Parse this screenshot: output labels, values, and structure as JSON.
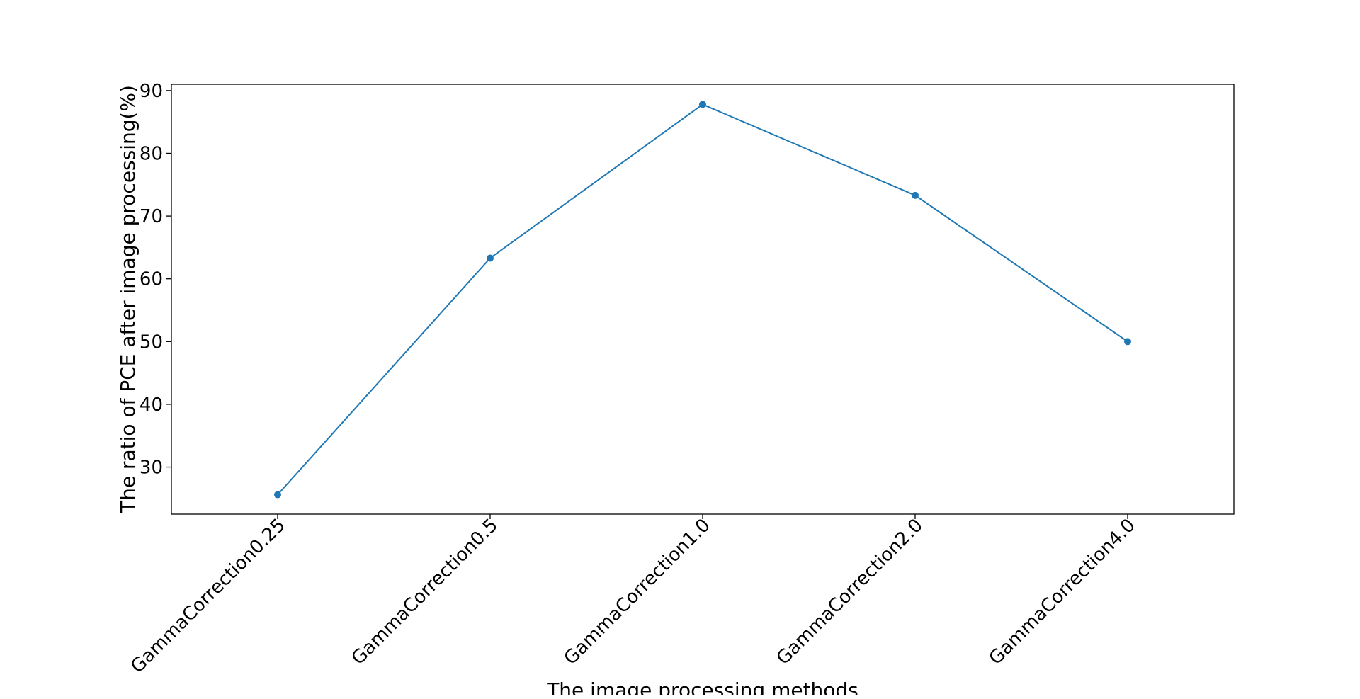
{
  "chart_data": {
    "type": "line",
    "title": "",
    "xlabel": "The image processing methods",
    "ylabel": "The ratio of PCE after image processing(%)",
    "categories": [
      "GammaCorrection0.25",
      "GammaCorrection0.5",
      "GammaCorrection1.0",
      "GammaCorrection2.0",
      "GammaCorrection4.0"
    ],
    "series": [
      {
        "values": [
          25.6,
          63.3,
          87.8,
          73.3,
          50.0
        ],
        "color": "#1f77b4",
        "marker": "circle"
      }
    ],
    "ylim": [
      22.5,
      91
    ],
    "yticks": [
      30,
      40,
      50,
      60,
      70,
      80,
      90
    ],
    "grid": false,
    "legend": "none"
  }
}
